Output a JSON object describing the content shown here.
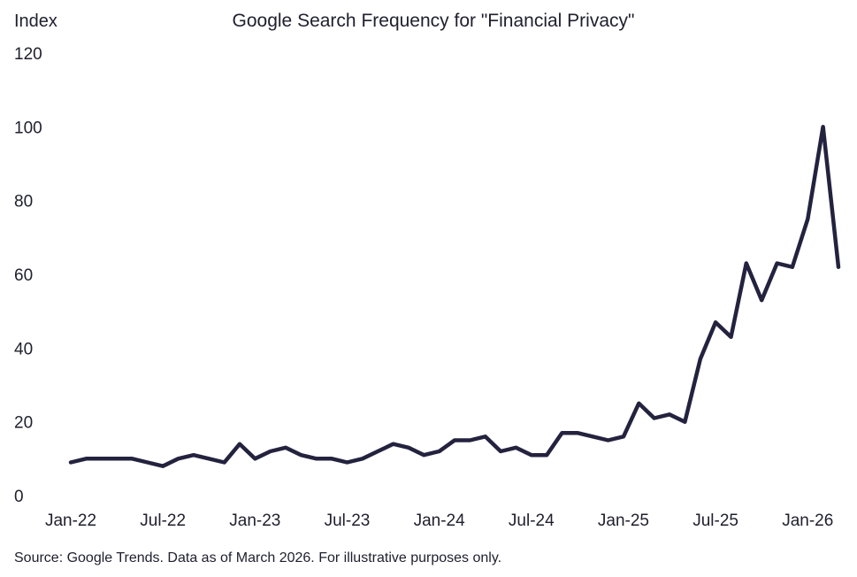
{
  "chart_data": {
    "type": "line",
    "title": "Google Search Frequency for \"Financial Privacy\"",
    "ylabel": "Index",
    "xlabel": "",
    "ylim": [
      0,
      120
    ],
    "yticks": [
      0,
      20,
      40,
      60,
      80,
      100,
      120
    ],
    "xticks": [
      "Jan-22",
      "Jul-22",
      "Jan-23",
      "Jul-23",
      "Jan-24",
      "Jul-24",
      "Jan-25",
      "Jul-25",
      "Jan-26"
    ],
    "grid": false,
    "line_color": "#23233f",
    "x": [
      "2022-01",
      "2022-02",
      "2022-03",
      "2022-04",
      "2022-05",
      "2022-06",
      "2022-07",
      "2022-08",
      "2022-09",
      "2022-10",
      "2022-11",
      "2022-12",
      "2023-01",
      "2023-02",
      "2023-03",
      "2023-04",
      "2023-05",
      "2023-06",
      "2023-07",
      "2023-08",
      "2023-09",
      "2023-10",
      "2023-11",
      "2023-12",
      "2024-01",
      "2024-02",
      "2024-03",
      "2024-04",
      "2024-05",
      "2024-06",
      "2024-07",
      "2024-08",
      "2024-09",
      "2024-10",
      "2024-11",
      "2024-12",
      "2025-01",
      "2025-02",
      "2025-03",
      "2025-04",
      "2025-05",
      "2025-06",
      "2025-07",
      "2025-08",
      "2025-09",
      "2025-10",
      "2025-11",
      "2025-12",
      "2026-01",
      "2026-02",
      "2026-03"
    ],
    "values": [
      9,
      10,
      10,
      10,
      10,
      9,
      8,
      10,
      11,
      10,
      9,
      14,
      10,
      12,
      13,
      11,
      10,
      10,
      9,
      10,
      12,
      14,
      13,
      11,
      12,
      15,
      15,
      16,
      12,
      13,
      11,
      11,
      17,
      17,
      16,
      15,
      16,
      25,
      21,
      22,
      20,
      37,
      47,
      43,
      63,
      53,
      63,
      62,
      75,
      100,
      62
    ]
  },
  "source": "Source: Google Trends. Data as of March 2026. For illustrative purposes only."
}
